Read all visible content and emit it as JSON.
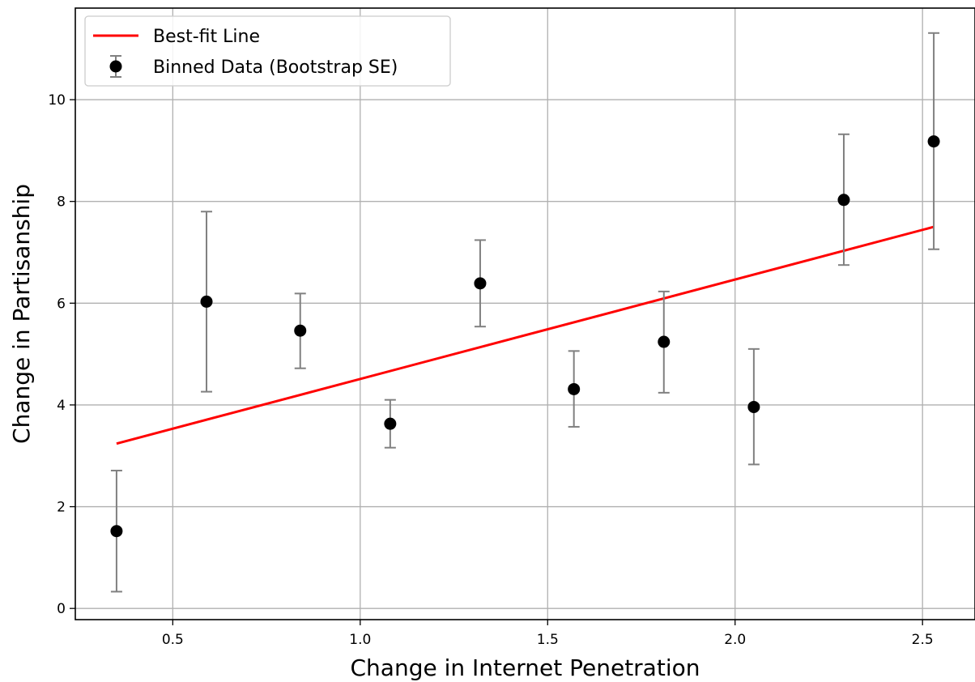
{
  "chart_data": {
    "type": "scatter",
    "title": "",
    "xlabel": "Change in Internet Penetration",
    "ylabel": "Change in Partisanship",
    "xlim": [
      0.24,
      2.64
    ],
    "ylim": [
      -0.22,
      11.8
    ],
    "xticks": [
      0.5,
      1.0,
      1.5,
      2.0,
      2.5
    ],
    "xtick_labels": [
      "0.5",
      "1.0",
      "1.5",
      "2.0",
      "2.5"
    ],
    "yticks": [
      0,
      2,
      4,
      6,
      8,
      10
    ],
    "ytick_labels": [
      "0",
      "2",
      "4",
      "6",
      "8",
      "10"
    ],
    "grid": true,
    "legend_position": "top-left",
    "series": [
      {
        "name": "Best-fit Line",
        "kind": "line",
        "color": "#ff0000",
        "x": [
          0.35,
          2.53
        ],
        "y": [
          3.24,
          7.5
        ]
      },
      {
        "name": "Binned Data (Bootstrap SE)",
        "kind": "errorbar",
        "color": "#000000",
        "error_color": "#808080",
        "points": [
          {
            "x": 0.35,
            "y": 1.52,
            "low": 0.33,
            "high": 2.71
          },
          {
            "x": 0.59,
            "y": 6.03,
            "low": 4.26,
            "high": 7.8
          },
          {
            "x": 0.84,
            "y": 5.46,
            "low": 4.72,
            "high": 6.19
          },
          {
            "x": 1.08,
            "y": 3.63,
            "low": 3.16,
            "high": 4.1
          },
          {
            "x": 1.32,
            "y": 6.39,
            "low": 5.54,
            "high": 7.24
          },
          {
            "x": 1.57,
            "y": 4.31,
            "low": 3.57,
            "high": 5.06
          },
          {
            "x": 1.81,
            "y": 5.24,
            "low": 4.24,
            "high": 6.23
          },
          {
            "x": 2.05,
            "y": 3.96,
            "low": 2.83,
            "high": 5.1
          },
          {
            "x": 2.29,
            "y": 8.03,
            "low": 6.75,
            "high": 9.32
          },
          {
            "x": 2.53,
            "y": 9.18,
            "low": 7.06,
            "high": 11.31
          }
        ]
      }
    ]
  }
}
